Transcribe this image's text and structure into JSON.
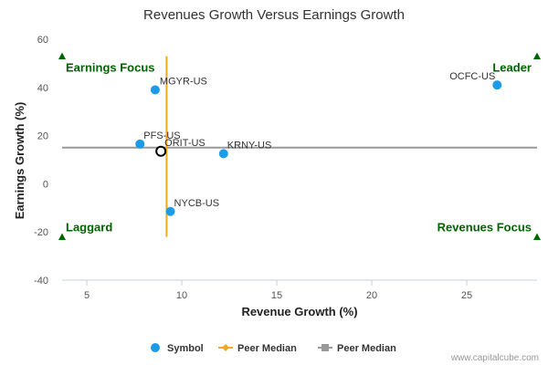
{
  "chart_data": {
    "type": "scatter",
    "title": "Revenues Growth Versus Earnings Growth",
    "xlabel": "Revenue Growth (%)",
    "ylabel": "Earnings Growth (%)",
    "xlim": [
      3.7,
      28.7
    ],
    "ylim": [
      -40,
      60
    ],
    "x_ticks": [
      5,
      10,
      15,
      20,
      25
    ],
    "y_ticks": [
      -40,
      -20,
      0,
      20,
      40,
      60
    ],
    "grid": false,
    "points": [
      {
        "label": "MGYR-US",
        "x": 8.6,
        "y": 39,
        "color": "#1e9be6"
      },
      {
        "label": "OCFC-US",
        "x": 26.6,
        "y": 41,
        "color": "#1e9be6"
      },
      {
        "label": "PFS-US",
        "x": 7.8,
        "y": 16.5,
        "color": "#1e9be6"
      },
      {
        "label": "ORIT-US",
        "x": 8.9,
        "y": 13.5,
        "color": "#000000",
        "highlight": true
      },
      {
        "label": "KRNY-US",
        "x": 12.2,
        "y": 12.5,
        "color": "#1e9be6"
      },
      {
        "label": "NYCB-US",
        "x": 9.4,
        "y": -11.5,
        "color": "#1e9be6"
      }
    ],
    "peer_median_revenue": 9.2,
    "peer_median_revenue_range": [
      -22,
      53
    ],
    "peer_median_earnings": 15,
    "quadrants": {
      "top_left": "Earnings Focus",
      "top_right": "Leader",
      "bottom_left": "Laggard",
      "bottom_right": "Revenues Focus"
    },
    "quadrant_marker_y": [
      53,
      -22
    ],
    "quadrant_color": "#006400",
    "legend": {
      "position": "bottom-center",
      "items": [
        {
          "label": "Symbol",
          "color": "#1e9be6",
          "marker": "circle"
        },
        {
          "label": "Peer Median",
          "color": "#f5a623",
          "marker": "diamond-line"
        },
        {
          "label": "Peer Median",
          "color": "#999999",
          "marker": "square-line"
        }
      ]
    },
    "credit": "www.capitalcube.com"
  }
}
